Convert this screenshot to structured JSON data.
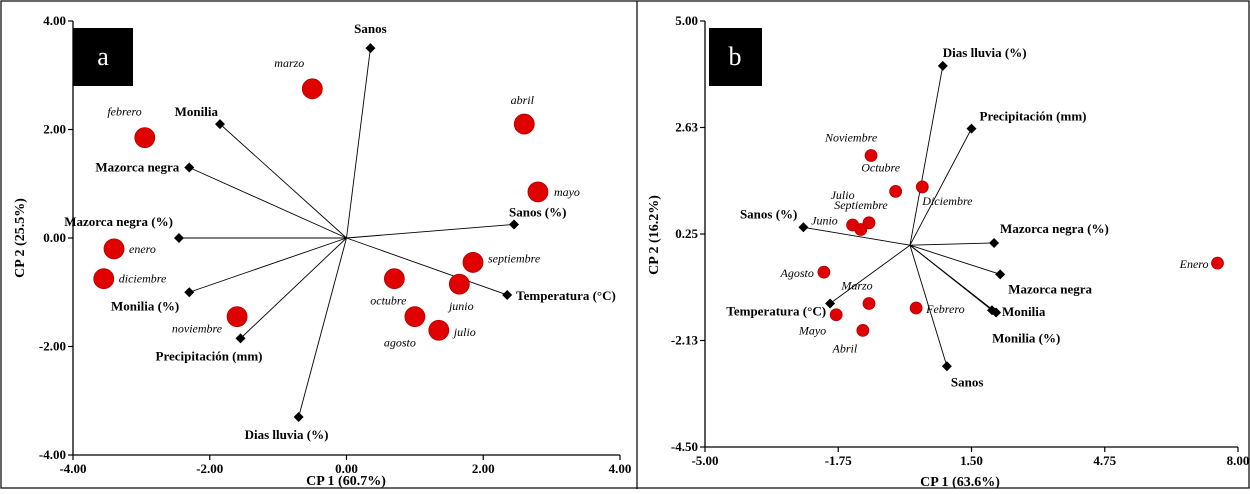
{
  "chart_data": [
    {
      "type": "scatter",
      "panel_label": "a",
      "xlabel": "CP 1 (60.7%)",
      "ylabel": "CP 2 (25.5%)",
      "xlim": [
        -4,
        4
      ],
      "ylim": [
        -4,
        4
      ],
      "xticks": [
        "-4.00",
        "-2.00",
        "0.00",
        "2.00",
        "4.00"
      ],
      "yticks": [
        "-4.00",
        "-2.00",
        "0.00",
        "2.00",
        "4.00"
      ],
      "marker_color": "#e00000",
      "points": [
        {
          "label": "marzo",
          "x": -0.5,
          "y": 2.75
        },
        {
          "label": "febrero",
          "x": -2.95,
          "y": 1.85
        },
        {
          "label": "abril",
          "x": 2.6,
          "y": 2.1
        },
        {
          "label": "mayo",
          "x": 2.8,
          "y": 0.85
        },
        {
          "label": "enero",
          "x": -3.4,
          "y": -0.2
        },
        {
          "label": "diciembre",
          "x": -3.55,
          "y": -0.75
        },
        {
          "label": "noviembre",
          "x": -1.6,
          "y": -1.45
        },
        {
          "label": "septiembre",
          "x": 1.85,
          "y": -0.45
        },
        {
          "label": "octubre",
          "x": 0.7,
          "y": -0.75
        },
        {
          "label": "junio",
          "x": 1.65,
          "y": -0.85
        },
        {
          "label": "agosto",
          "x": 1.0,
          "y": -1.45
        },
        {
          "label": "julio",
          "x": 1.35,
          "y": -1.7
        }
      ],
      "vectors": [
        {
          "label": "Sanos",
          "x": 0.35,
          "y": 3.5
        },
        {
          "label": "Monilia",
          "x": -1.85,
          "y": 2.1
        },
        {
          "label": "Mazorca negra",
          "x": -2.3,
          "y": 1.3
        },
        {
          "label": "Mazorca negra (%)",
          "x": -2.45,
          "y": 0.0
        },
        {
          "label": "Monilia (%)",
          "x": -2.3,
          "y": -1.0
        },
        {
          "label": "Precipitación (mm)",
          "x": -1.55,
          "y": -1.85
        },
        {
          "label": "Dias lluvia (%)",
          "x": -0.7,
          "y": -3.3
        },
        {
          "label": "Sanos (%)",
          "x": 2.45,
          "y": 0.25
        },
        {
          "label": "Temperatura (°C)",
          "x": 2.35,
          "y": -1.05
        }
      ]
    },
    {
      "type": "scatter",
      "panel_label": "b",
      "xlabel": "CP 1 (63.6%)",
      "ylabel": "CP 2 (16.2%)",
      "xlim": [
        -5,
        8
      ],
      "ylim": [
        -4.5,
        5
      ],
      "xticks": [
        "-5.00",
        "-1.75",
        "1.50",
        "4.75",
        "8.00"
      ],
      "yticks": [
        "-4.50",
        "-2.13",
        "0.25",
        "2.63",
        "5.00"
      ],
      "marker_color": "#e00000",
      "points": [
        {
          "label": "Noviembre",
          "x": -0.95,
          "y": 2.0
        },
        {
          "label": "Octubre",
          "x": -0.35,
          "y": 1.2
        },
        {
          "label": "Diciembre",
          "x": 0.3,
          "y": 1.3
        },
        {
          "label": "Julio",
          "x": -1.4,
          "y": 0.45
        },
        {
          "label": "Septiembre",
          "x": -1.0,
          "y": 0.5
        },
        {
          "label": "Junio",
          "x": -1.2,
          "y": 0.35
        },
        {
          "label": "Agosto",
          "x": -2.1,
          "y": -0.6
        },
        {
          "label": "Enero",
          "x": 7.5,
          "y": -0.4
        },
        {
          "label": "Marzo",
          "x": -1.0,
          "y": -1.3
        },
        {
          "label": "Febrero",
          "x": 0.15,
          "y": -1.4
        },
        {
          "label": "Mayo",
          "x": -1.8,
          "y": -1.55
        },
        {
          "label": "Abril",
          "x": -1.15,
          "y": -1.9
        }
      ],
      "vectors": [
        {
          "label": "Dias lluvia (%)",
          "x": 0.8,
          "y": 4.0
        },
        {
          "label": "Precipitación (mm)",
          "x": 1.5,
          "y": 2.6
        },
        {
          "label": "Sanos (%)",
          "x": -2.6,
          "y": 0.4
        },
        {
          "label": "Mazorca negra (%)",
          "x": 2.05,
          "y": 0.05
        },
        {
          "label": "Mazorca negra",
          "x": 2.2,
          "y": -0.65
        },
        {
          "label": "Temperatura (°C)",
          "x": -1.95,
          "y": -1.3
        },
        {
          "label": "Monilia",
          "x": 2.0,
          "y": -1.45
        },
        {
          "label": "Monilia (%)",
          "x": 2.1,
          "y": -1.5
        },
        {
          "label": "Sanos",
          "x": 0.9,
          "y": -2.7
        }
      ]
    }
  ]
}
